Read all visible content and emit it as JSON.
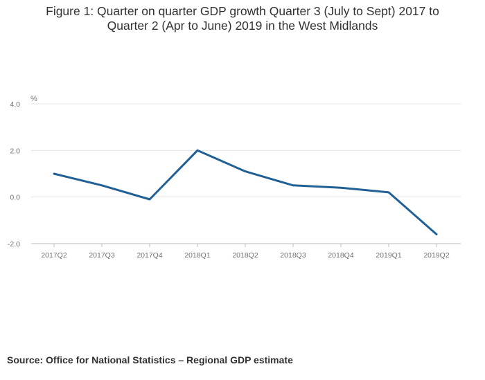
{
  "title": {
    "line1": "Figure 1: Quarter on quarter GDP growth Quarter 3 (July to Sept) 2017 to",
    "line2": "Quarter 2 (Apr to June) 2019 in the West Midlands"
  },
  "source": "Source: Office for National Statistics – Regional GDP estimate",
  "chart_data": {
    "type": "line",
    "title": "Figure 1: Quarter on quarter GDP growth Quarter 3 (July to Sept) 2017 to Quarter 2 (Apr to June) 2019 in the West Midlands",
    "xlabel": "",
    "ylabel": "%",
    "categories": [
      "2017Q2",
      "2017Q3",
      "2017Q4",
      "2018Q1",
      "2018Q2",
      "2018Q3",
      "2018Q4",
      "2019Q1",
      "2019Q2"
    ],
    "series": [
      {
        "values": [
          1.0,
          0.5,
          -0.1,
          2.0,
          1.1,
          0.5,
          0.4,
          0.2,
          -1.6
        ]
      }
    ],
    "ylim": [
      -2.0,
      4.0
    ],
    "yticks": [
      -2.0,
      0.0,
      2.0,
      4.0
    ],
    "ytick_labels": [
      "-2.0",
      "0.0",
      "2.0",
      "4.0"
    ],
    "grid": true,
    "legend": "none",
    "color": "#206095"
  }
}
